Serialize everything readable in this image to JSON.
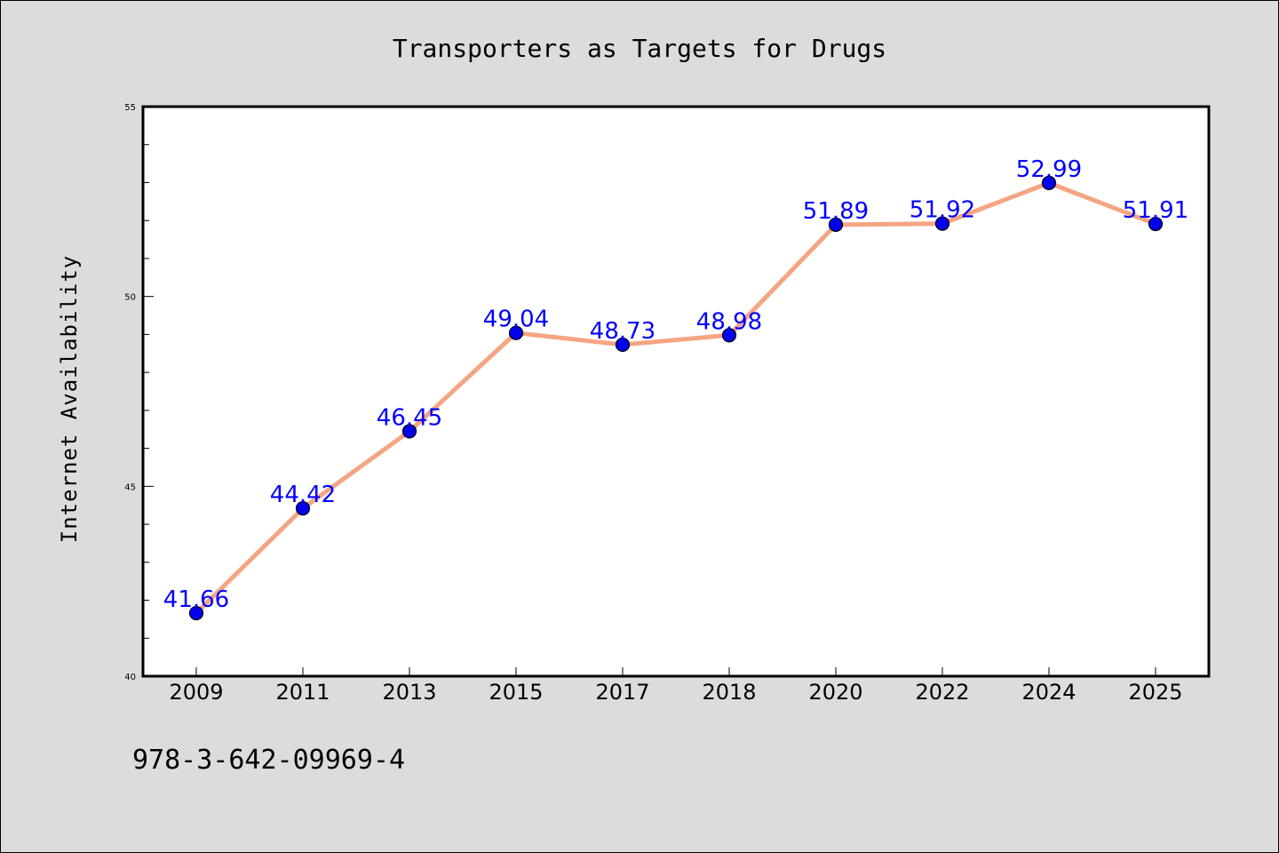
{
  "chart_data": {
    "type": "line",
    "title": "Transporters as Targets for Drugs",
    "xlabel": "",
    "ylabel": "Internet Availability",
    "categories": [
      "2009",
      "2011",
      "2013",
      "2015",
      "2017",
      "2018",
      "2020",
      "2022",
      "2024",
      "2025"
    ],
    "series": [
      {
        "values": [
          41.66,
          44.42,
          46.45,
          49.04,
          48.73,
          48.98,
          51.89,
          51.92,
          52.99,
          51.91
        ],
        "data_labels": [
          "41.66",
          "44.42",
          "46.45",
          "49.04",
          "48.73",
          "48.98",
          "51.89",
          "51.92",
          "52.99",
          "51.91"
        ]
      }
    ],
    "ylim": [
      40,
      55
    ],
    "y_major_ticks": [
      "40",
      "45",
      "50",
      "55"
    ],
    "y_minor_tick_step": 1,
    "grid": false,
    "legend": "none",
    "colors": {
      "line": "#f4a582",
      "marker": "#0000ee",
      "marker_edge": "#000000",
      "data_label": "#0000ff",
      "plot_background": "#ffffff",
      "figure_background": "#dcdcdc"
    }
  },
  "footer": {
    "code": "978-3-642-09969-4"
  }
}
